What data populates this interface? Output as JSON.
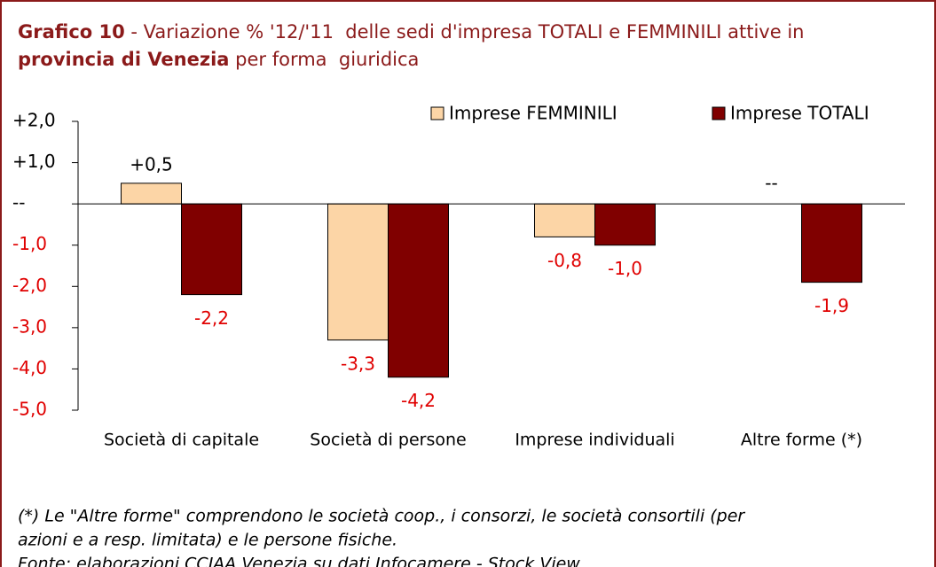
{
  "chart_data": {
    "type": "bar",
    "title_lines": [
      [
        {
          "text": "Grafico 10",
          "bold": true
        },
        {
          "text": " - Variazione % '12/'11  delle sedi d'impresa TOTALI e FEMMINILI attive in",
          "bold": false
        }
      ],
      [
        {
          "text": "provincia di Venezia",
          "bold": true
        },
        {
          "text": " per forma  giuridica",
          "bold": false
        }
      ]
    ],
    "categories": [
      "Società di capitale",
      "Società di persone",
      "Imprese individuali",
      "Altre forme (*)"
    ],
    "series": [
      {
        "name": "Imprese FEMMINILI",
        "color": "#fcd5a6",
        "values": [
          0.5,
          -3.3,
          -0.8,
          0
        ],
        "value_labels": [
          "+0,5",
          "-3,3",
          "-0,8",
          "--"
        ]
      },
      {
        "name": "Imprese TOTALI",
        "color": "#800000",
        "values": [
          -2.2,
          -4.2,
          -1.0,
          -1.9
        ],
        "value_labels": [
          "-2,2",
          "-4,2",
          "-1,0",
          "-1,9"
        ]
      }
    ],
    "ylim": [
      -5,
      2
    ],
    "yticks": [
      {
        "value": 2,
        "label": "+2,0"
      },
      {
        "value": 1,
        "label": "+1,0"
      },
      {
        "value": 0,
        "label": "--"
      },
      {
        "value": -1,
        "label": "-1,0"
      },
      {
        "value": -2,
        "label": "-2,0"
      },
      {
        "value": -3,
        "label": "-3,0"
      },
      {
        "value": -4,
        "label": "-4,0"
      },
      {
        "value": -5,
        "label": "-5,0"
      }
    ],
    "legend": "top-right",
    "notes": [
      "(*) Le \"Altre forme\" comprendono le società coop., i consorzi, le società consortili (per",
      "azioni e a resp. limitata) e le persone fisiche.",
      "Fonte: elaborazioni CCIAA Venezia su dati Infocamere - Stock View"
    ]
  }
}
